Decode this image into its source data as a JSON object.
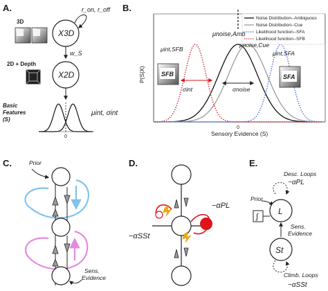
{
  "panel_labels": {
    "a": "A.",
    "b": "B.",
    "c": "C.",
    "d": "D.",
    "e": "E."
  },
  "panel_a": {
    "box_3d": "3D",
    "node_top": "X3D",
    "rates": "r_on, r_off",
    "weight": "w_S",
    "box_2d_depth": "2D + Depth",
    "node_mid": "X2D",
    "basic_features_line1": "Basic",
    "basic_features_line2": "Features",
    "basic_features_line3": "(S)",
    "params": "μint, σint",
    "zero": "0"
  },
  "panel_b": {
    "y_label": "P(S|X)",
    "x_label": "Sensory Evidence (S)",
    "zero_tick": "0",
    "mu_noise_amb": "μnoise,Amb",
    "mu_noise_cue": "μnoise,Cue",
    "mu_int_sfa": "μint,SFA",
    "mu_int_sfb": "μint,SFB",
    "sigma_int": "σint",
    "sigma_noise": "σnoise",
    "icon_sfb": "SFB",
    "icon_sfa": "SFA",
    "legend": [
      {
        "label": "Noise Distribution--Ambiguous",
        "color": "#111111",
        "style": "solid"
      },
      {
        "label": "Noise Distribution--Cue",
        "color": "#9a9a9a",
        "style": "solid"
      },
      {
        "label": "Likelihood function--SFA",
        "color": "#4a6fd8",
        "style": "dotted"
      },
      {
        "label": "Likelihood function--SFB",
        "color": "#d6283b",
        "style": "dotted"
      }
    ]
  },
  "panel_c": {
    "prior": "Prior",
    "sens_evidence_line1": "Sens.",
    "sens_evidence_line2": "Evidence",
    "loop_colors": {
      "top": "#7ec3ec",
      "bottom": "#e58ae0"
    }
  },
  "panel_d": {
    "top_term": "−αPL",
    "left_term": "−αSSt",
    "colors": {
      "red": "#e0131a",
      "orange": "#f5a800"
    }
  },
  "panel_e": {
    "desc_loops": "Desc. Loops",
    "desc_term": "~αPL",
    "prior": "Prior",
    "integrator": "∫",
    "node_top": "L",
    "sens_evidence_line1": "Sens.",
    "sens_evidence_line2": "Evidence",
    "node_bottom": "St",
    "climb_loops": "Climb. Loops",
    "climb_term": "~αSSt"
  },
  "chart_data": {
    "type": "line",
    "title": "",
    "xlabel": "Sensory Evidence (S)",
    "ylabel": "P(S|X)",
    "x_center": 0,
    "series": [
      {
        "name": "Noise Distribution--Ambiguous",
        "mean": 0.0,
        "sd": 1.0,
        "peak": 0.62
      },
      {
        "name": "Noise Distribution--Cue",
        "mean": 0.5,
        "sd": 1.0,
        "peak": 0.62
      },
      {
        "name": "Likelihood function--SFA",
        "mean": 2.2,
        "sd": 0.55,
        "peak": 0.62
      },
      {
        "name": "Likelihood function--SFB",
        "mean": -2.2,
        "sd": 0.55,
        "peak": 0.62
      }
    ]
  }
}
